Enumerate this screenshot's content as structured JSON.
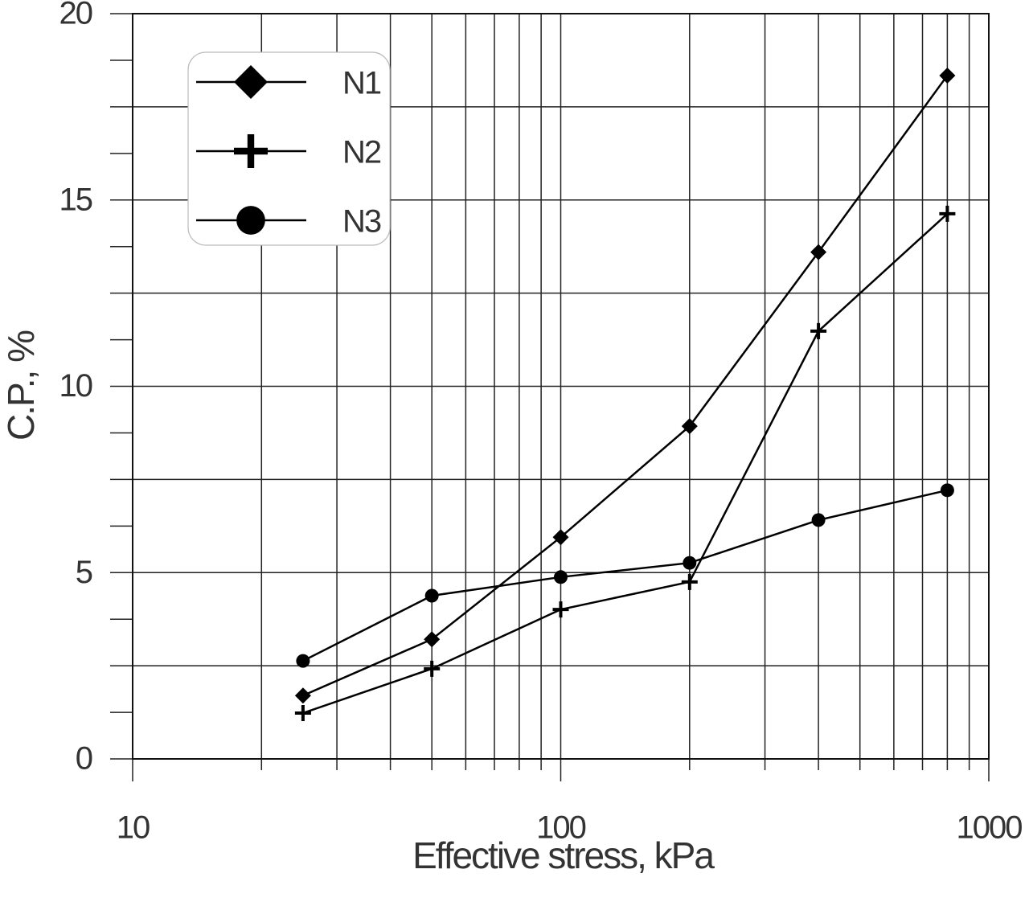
{
  "chart_data": {
    "type": "line",
    "xlabel": "Effective stress,  kPa",
    "ylabel": "C.P.,  %",
    "x": [
      25,
      50,
      100,
      200,
      400,
      800
    ],
    "series": [
      {
        "name": "N1",
        "color": "#000000",
        "marker": "diamond",
        "values": [
          1.7,
          3.21,
          5.95,
          8.93,
          13.6,
          18.34
        ]
      },
      {
        "name": "N2",
        "color": "#000000",
        "marker": "plus",
        "values": [
          1.23,
          2.42,
          4.01,
          4.75,
          11.48,
          14.63
        ]
      },
      {
        "name": "N3",
        "color": "#000000",
        "marker": "circle",
        "values": [
          2.63,
          4.38,
          4.88,
          5.26,
          6.41,
          7.21
        ]
      }
    ],
    "xscale": "log",
    "xlim": [
      10,
      1000
    ],
    "xticks": [
      10,
      100,
      1000
    ],
    "xminorticks": [
      20,
      30,
      40,
      50,
      60,
      70,
      80,
      90,
      200,
      300,
      400,
      500,
      600,
      700,
      800,
      900
    ],
    "ylim": [
      0,
      20
    ],
    "yticks": [
      0,
      5,
      10,
      15,
      20
    ],
    "yminorgrid": [
      2.5,
      7.5,
      12.5,
      17.5
    ],
    "yminorticks": [
      1.25,
      3.75,
      6.25,
      8.75,
      11.25,
      13.75,
      16.25,
      18.75
    ],
    "grid": true,
    "legend": "upper left"
  }
}
